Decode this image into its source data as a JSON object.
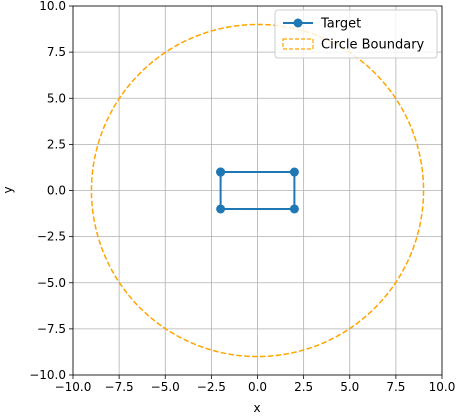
{
  "chart_data": {
    "type": "line",
    "x_label": "x",
    "y_label": "y",
    "xlim": [
      -10,
      10
    ],
    "ylim": [
      -10,
      10
    ],
    "xticks": [
      {
        "value": -10,
        "label": "−10.0"
      },
      {
        "value": -7.5,
        "label": "−7.5"
      },
      {
        "value": -5,
        "label": "−5.0"
      },
      {
        "value": -2.5,
        "label": "−2.5"
      },
      {
        "value": 0,
        "label": "0.0"
      },
      2.5,
      {
        "value": 5,
        "label": "5.0"
      },
      7.5,
      {
        "value": 10,
        "label": "10.0"
      }
    ],
    "yticks": [
      {
        "value": -10,
        "label": "−10.0"
      },
      {
        "value": -7.5,
        "label": "−7.5"
      },
      {
        "value": -5,
        "label": "−5.0"
      },
      {
        "value": -2.5,
        "label": "−2.5"
      },
      {
        "value": 0,
        "label": "0.0"
      },
      2.5,
      {
        "value": 5,
        "label": "5.0"
      },
      7.5,
      {
        "value": 10,
        "label": "10.0"
      }
    ],
    "grid": true,
    "legend": "upper right",
    "series": [
      {
        "name": "Target",
        "color": "#1f77b4",
        "marker": true,
        "x": [
          -2,
          2,
          2,
          -2,
          -2
        ],
        "values": [
          1,
          1,
          -1,
          -1,
          1
        ]
      },
      {
        "name": "Circle Boundary",
        "color": "#ffa500",
        "shape": "circle",
        "dashed": true,
        "center_x": 0,
        "center_y": 0,
        "radius": 9
      }
    ]
  }
}
